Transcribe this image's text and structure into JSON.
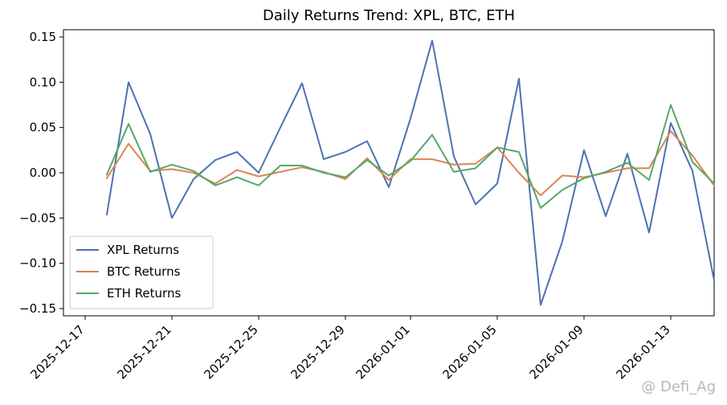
{
  "chart_data": {
    "type": "line",
    "title": "Daily Returns Trend: XPL, BTC, ETH",
    "xlabel": "",
    "ylabel": "",
    "ylim": [
      -0.158,
      0.158
    ],
    "yticks": [
      -0.15,
      -0.1,
      -0.05,
      0.0,
      0.05,
      0.1,
      0.15
    ],
    "ytick_labels": [
      "−0.15",
      "−0.10",
      "−0.05",
      "0.00",
      "0.05",
      "0.10",
      "0.15"
    ],
    "xlim": [
      "2025-12-16",
      "2026-01-15"
    ],
    "xtick_labels": [
      "2025-12-17",
      "2025-12-21",
      "2025-12-25",
      "2025-12-29",
      "2026-01-01",
      "2026-01-05",
      "2026-01-09",
      "2026-01-13"
    ],
    "x": [
      "2025-12-18",
      "2025-12-19",
      "2025-12-20",
      "2025-12-21",
      "2025-12-22",
      "2025-12-23",
      "2025-12-24",
      "2025-12-25",
      "2025-12-26",
      "2025-12-27",
      "2025-12-28",
      "2025-12-29",
      "2025-12-30",
      "2025-12-31",
      "2026-01-01",
      "2026-01-02",
      "2026-01-03",
      "2026-01-04",
      "2026-01-05",
      "2026-01-06",
      "2026-01-07",
      "2026-01-08",
      "2026-01-09",
      "2026-01-10",
      "2026-01-11",
      "2026-01-12",
      "2026-01-13",
      "2026-01-14",
      "2026-01-15"
    ],
    "series": [
      {
        "name": "XPL Returns",
        "color": "#4c72b0",
        "values": [
          -0.046,
          0.1,
          0.043,
          -0.05,
          -0.007,
          0.014,
          0.023,
          0.0,
          0.05,
          0.099,
          0.015,
          0.023,
          0.035,
          -0.016,
          0.06,
          0.146,
          0.018,
          -0.035,
          -0.012,
          0.104,
          -0.146,
          -0.076,
          0.025,
          -0.048,
          0.021,
          -0.066,
          0.055,
          0.002,
          -0.119
        ]
      },
      {
        "name": "BTC Returns",
        "color": "#dd8452",
        "values": [
          -0.006,
          0.032,
          0.002,
          0.004,
          0.0,
          -0.012,
          0.003,
          -0.004,
          0.001,
          0.006,
          0.001,
          -0.007,
          0.016,
          -0.008,
          0.015,
          0.015,
          0.009,
          0.01,
          0.028,
          0.0,
          -0.025,
          -0.003,
          -0.005,
          0.0,
          0.005,
          0.005,
          0.046,
          0.019,
          -0.014
        ]
      },
      {
        "name": "ETH Returns",
        "color": "#55a868",
        "values": [
          -0.002,
          0.054,
          0.001,
          0.009,
          0.002,
          -0.014,
          -0.005,
          -0.014,
          0.008,
          0.008,
          0.0,
          -0.005,
          0.014,
          -0.003,
          0.013,
          0.042,
          0.001,
          0.005,
          0.028,
          0.023,
          -0.039,
          -0.019,
          -0.006,
          0.001,
          0.011,
          -0.008,
          0.075,
          0.012,
          -0.012
        ]
      }
    ],
    "grid": false,
    "legend_position": "lower-left"
  },
  "watermark": "@ Defi_Ag"
}
